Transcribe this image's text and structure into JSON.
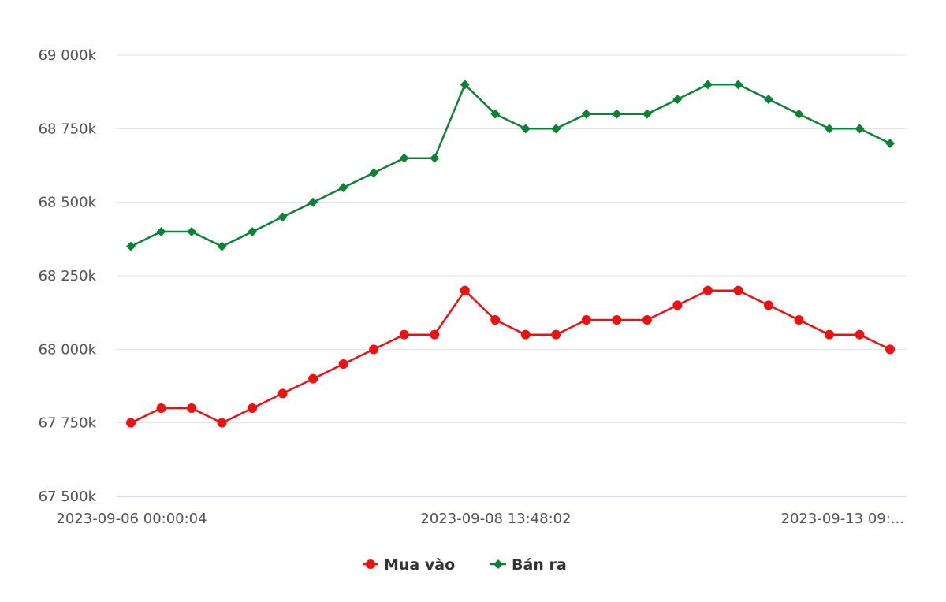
{
  "chart_data": {
    "type": "line",
    "y_tick_labels": [
      "67 500k",
      "67 750k",
      "68 000k",
      "68 250k",
      "68 500k",
      "68 750k",
      "69 000k"
    ],
    "x_tick_labels": [
      "2023-09-06 00:00:04",
      "2023-09-08 13:48:02",
      "2023-09-13 09:..."
    ],
    "ylim": [
      67500,
      69000
    ],
    "grid": true,
    "legend_placement": "bottom-center",
    "series": [
      {
        "name": "Mua vào",
        "color": "#ee1111",
        "marker": "circle",
        "values": [
          67750,
          67800,
          67800,
          67750,
          67800,
          67850,
          67900,
          67950,
          68000,
          68050,
          68050,
          68200,
          68100,
          68050,
          68050,
          68100,
          68100,
          68100,
          68150,
          68200,
          68200,
          68150,
          68100,
          68050,
          68050,
          68000
        ]
      },
      {
        "name": "Bán ra",
        "color": "#0b8234",
        "marker": "diamond",
        "values": [
          68350,
          68400,
          68400,
          68350,
          68400,
          68450,
          68500,
          68550,
          68600,
          68650,
          68650,
          68900,
          68800,
          68750,
          68750,
          68800,
          68800,
          68800,
          68850,
          68900,
          68900,
          68850,
          68800,
          68750,
          68750,
          68700
        ]
      }
    ]
  }
}
